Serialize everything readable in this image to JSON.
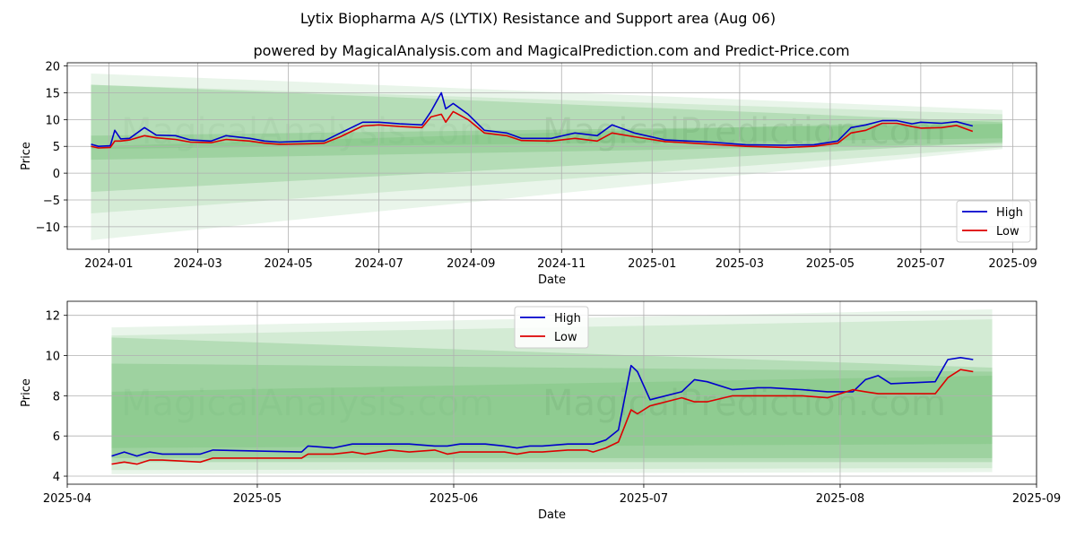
{
  "title": "Lytix Biopharma A/S (LYTIX) Resistance and Support area (Aug 06)",
  "subtitle": "powered by MagicalAnalysis.com and MagicalPrediction.com and Predict-Price.com",
  "watermark_left": "MagicalAnalysis.com",
  "watermark_right": "MagicalPrediction.com",
  "colors": {
    "high": "#0000cc",
    "low": "#dd0000",
    "band": "#4caf50",
    "grid": "#b0b0b0"
  },
  "chart_data": [
    {
      "type": "line",
      "xlabel": "Date",
      "ylabel": "Price",
      "xlim": [
        "2023-12-04",
        "2025-09-17"
      ],
      "ylim": [
        -14.2,
        20.6
      ],
      "x_ticks": [
        "2024-01",
        "2024-03",
        "2024-05",
        "2024-07",
        "2024-09",
        "2024-11",
        "2025-01",
        "2025-03",
        "2025-05",
        "2025-07",
        "2025-09"
      ],
      "y_ticks": [
        20,
        15,
        10,
        5,
        0,
        -5,
        -10
      ],
      "y_tick_labels": [
        "20",
        "15",
        "10",
        "5",
        "0",
        "−5",
        "−10"
      ],
      "legend": {
        "position": "lower-right",
        "entries": [
          "High",
          "Low"
        ]
      },
      "grid": true,
      "series": [
        {
          "name": "High",
          "points": [
            [
              "2023-12-20",
              5.4
            ],
            [
              "2023-12-25",
              5.0
            ],
            [
              "2024-01-02",
              5.1
            ],
            [
              "2024-01-05",
              8.0
            ],
            [
              "2024-01-09",
              6.4
            ],
            [
              "2024-01-15",
              6.5
            ],
            [
              "2024-01-25",
              8.5
            ],
            [
              "2024-02-02",
              7.1
            ],
            [
              "2024-02-15",
              7.0
            ],
            [
              "2024-02-25",
              6.2
            ],
            [
              "2024-03-10",
              6.0
            ],
            [
              "2024-03-20",
              7.0
            ],
            [
              "2024-04-05",
              6.5
            ],
            [
              "2024-04-15",
              6.0
            ],
            [
              "2024-04-25",
              5.8
            ],
            [
              "2024-05-15",
              6.0
            ],
            [
              "2024-05-25",
              6.0
            ],
            [
              "2024-06-05",
              7.5
            ],
            [
              "2024-06-20",
              9.5
            ],
            [
              "2024-07-01",
              9.5
            ],
            [
              "2024-07-15",
              9.2
            ],
            [
              "2024-07-30",
              9.0
            ],
            [
              "2024-08-05",
              11.5
            ],
            [
              "2024-08-12",
              15.0
            ],
            [
              "2024-08-15",
              12.0
            ],
            [
              "2024-08-20",
              13.0
            ],
            [
              "2024-08-30",
              11.0
            ],
            [
              "2024-09-10",
              8.0
            ],
            [
              "2024-09-25",
              7.5
            ],
            [
              "2024-10-05",
              6.5
            ],
            [
              "2024-10-25",
              6.5
            ],
            [
              "2024-11-10",
              7.5
            ],
            [
              "2024-11-25",
              7.0
            ],
            [
              "2024-12-05",
              9.0
            ],
            [
              "2024-12-20",
              7.5
            ],
            [
              "2025-01-10",
              6.2
            ],
            [
              "2025-02-10",
              5.8
            ],
            [
              "2025-03-05",
              5.3
            ],
            [
              "2025-04-01",
              5.2
            ],
            [
              "2025-04-20",
              5.3
            ],
            [
              "2025-05-06",
              6.0
            ],
            [
              "2025-05-15",
              8.5
            ],
            [
              "2025-05-25",
              9.0
            ],
            [
              "2025-06-05",
              9.8
            ],
            [
              "2025-06-15",
              9.8
            ],
            [
              "2025-06-25",
              9.2
            ],
            [
              "2025-07-01",
              9.5
            ],
            [
              "2025-07-15",
              9.3
            ],
            [
              "2025-07-25",
              9.6
            ],
            [
              "2025-08-05",
              8.8
            ]
          ]
        },
        {
          "name": "Low",
          "points": [
            [
              "2023-12-20",
              5.0
            ],
            [
              "2023-12-25",
              4.7
            ],
            [
              "2024-01-02",
              4.8
            ],
            [
              "2024-01-05",
              6.0
            ],
            [
              "2024-01-09",
              6.0
            ],
            [
              "2024-01-15",
              6.2
            ],
            [
              "2024-01-25",
              7.0
            ],
            [
              "2024-02-02",
              6.6
            ],
            [
              "2024-02-15",
              6.3
            ],
            [
              "2024-02-25",
              5.8
            ],
            [
              "2024-03-10",
              5.7
            ],
            [
              "2024-03-20",
              6.3
            ],
            [
              "2024-04-05",
              6.0
            ],
            [
              "2024-04-15",
              5.6
            ],
            [
              "2024-04-25",
              5.4
            ],
            [
              "2024-05-15",
              5.5
            ],
            [
              "2024-05-25",
              5.6
            ],
            [
              "2024-06-05",
              6.8
            ],
            [
              "2024-06-20",
              8.8
            ],
            [
              "2024-07-01",
              9.0
            ],
            [
              "2024-07-15",
              8.7
            ],
            [
              "2024-07-30",
              8.5
            ],
            [
              "2024-08-05",
              10.5
            ],
            [
              "2024-08-12",
              11.0
            ],
            [
              "2024-08-15",
              9.5
            ],
            [
              "2024-08-20",
              11.5
            ],
            [
              "2024-08-30",
              10.0
            ],
            [
              "2024-09-10",
              7.5
            ],
            [
              "2024-09-25",
              7.0
            ],
            [
              "2024-10-05",
              6.1
            ],
            [
              "2024-10-25",
              6.0
            ],
            [
              "2024-11-10",
              6.5
            ],
            [
              "2024-11-25",
              6.0
            ],
            [
              "2024-12-05",
              7.5
            ],
            [
              "2024-12-20",
              6.8
            ],
            [
              "2025-01-10",
              5.9
            ],
            [
              "2025-02-10",
              5.4
            ],
            [
              "2025-03-05",
              5.0
            ],
            [
              "2025-04-01",
              4.8
            ],
            [
              "2025-04-20",
              5.0
            ],
            [
              "2025-05-06",
              5.6
            ],
            [
              "2025-05-15",
              7.5
            ],
            [
              "2025-05-25",
              8.0
            ],
            [
              "2025-06-05",
              9.3
            ],
            [
              "2025-06-15",
              9.3
            ],
            [
              "2025-06-25",
              8.7
            ],
            [
              "2025-07-01",
              8.4
            ],
            [
              "2025-07-15",
              8.5
            ],
            [
              "2025-07-25",
              8.9
            ],
            [
              "2025-08-05",
              7.8
            ]
          ]
        }
      ],
      "bands": [
        {
          "start": "2023-12-20",
          "end": "2025-08-25",
          "upper": [
            18.6,
            11.8
          ],
          "lower": [
            -12.5,
            4.5
          ],
          "opacity": 0.12
        },
        {
          "start": "2023-12-20",
          "end": "2025-08-25",
          "upper": [
            16.5,
            11.0
          ],
          "lower": [
            -7.5,
            4.8
          ],
          "opacity": 0.14
        },
        {
          "start": "2023-12-20",
          "end": "2025-08-25",
          "upper": [
            16.5,
            9.5
          ],
          "lower": [
            2.5,
            5.5
          ],
          "opacity": 0.22
        },
        {
          "start": "2023-12-20",
          "end": "2025-08-25",
          "upper": [
            7.0,
            9.2
          ],
          "lower": [
            -3.5,
            5.8
          ],
          "opacity": 0.22
        },
        {
          "start": "2023-12-20",
          "end": "2025-08-25",
          "upper": [
            5.0,
            10.0
          ],
          "lower": [
            4.5,
            6.5
          ],
          "opacity": 0.18
        }
      ]
    },
    {
      "type": "line",
      "xlabel": "Date",
      "ylabel": "Price",
      "xlim": [
        "2025-04-01",
        "2025-09-01"
      ],
      "ylim": [
        3.6,
        12.7
      ],
      "x_ticks": [
        "2025-04",
        "2025-05",
        "2025-06",
        "2025-07",
        "2025-08",
        "2025-09"
      ],
      "y_ticks": [
        12,
        10,
        8,
        6,
        4
      ],
      "y_tick_labels": [
        "12",
        "10",
        "8",
        "6",
        "4"
      ],
      "legend": {
        "position": "upper-center",
        "entries": [
          "High",
          "Low"
        ]
      },
      "grid": true,
      "series": [
        {
          "name": "High",
          "points": [
            [
              "2025-04-08",
              5.0
            ],
            [
              "2025-04-10",
              5.2
            ],
            [
              "2025-04-12",
              5.0
            ],
            [
              "2025-04-14",
              5.2
            ],
            [
              "2025-04-16",
              5.1
            ],
            [
              "2025-04-22",
              5.1
            ],
            [
              "2025-04-24",
              5.3
            ],
            [
              "2025-05-08",
              5.2
            ],
            [
              "2025-05-09",
              5.5
            ],
            [
              "2025-05-13",
              5.4
            ],
            [
              "2025-05-16",
              5.6
            ],
            [
              "2025-05-18",
              5.6
            ],
            [
              "2025-05-22",
              5.6
            ],
            [
              "2025-05-25",
              5.6
            ],
            [
              "2025-05-29",
              5.5
            ],
            [
              "2025-05-31",
              5.5
            ],
            [
              "2025-06-02",
              5.6
            ],
            [
              "2025-06-06",
              5.6
            ],
            [
              "2025-06-09",
              5.5
            ],
            [
              "2025-06-11",
              5.4
            ],
            [
              "2025-06-13",
              5.5
            ],
            [
              "2025-06-15",
              5.5
            ],
            [
              "2025-06-19",
              5.6
            ],
            [
              "2025-06-22",
              5.6
            ],
            [
              "2025-06-23",
              5.6
            ],
            [
              "2025-06-25",
              5.8
            ],
            [
              "2025-06-27",
              6.3
            ],
            [
              "2025-06-29",
              9.5
            ],
            [
              "2025-06-30",
              9.2
            ],
            [
              "2025-07-02",
              7.8
            ],
            [
              "2025-07-07",
              8.2
            ],
            [
              "2025-07-09",
              8.8
            ],
            [
              "2025-07-11",
              8.7
            ],
            [
              "2025-07-15",
              8.3
            ],
            [
              "2025-07-19",
              8.4
            ],
            [
              "2025-07-21",
              8.4
            ],
            [
              "2025-07-26",
              8.3
            ],
            [
              "2025-07-30",
              8.2
            ],
            [
              "2025-08-03",
              8.2
            ],
            [
              "2025-08-05",
              8.8
            ],
            [
              "2025-08-07",
              9.0
            ],
            [
              "2025-08-09",
              8.6
            ],
            [
              "2025-08-16",
              8.7
            ],
            [
              "2025-08-18",
              9.8
            ],
            [
              "2025-08-20",
              9.9
            ],
            [
              "2025-08-22",
              9.8
            ]
          ]
        },
        {
          "name": "Low",
          "points": [
            [
              "2025-04-08",
              4.6
            ],
            [
              "2025-04-10",
              4.7
            ],
            [
              "2025-04-12",
              4.6
            ],
            [
              "2025-04-14",
              4.8
            ],
            [
              "2025-04-16",
              4.8
            ],
            [
              "2025-04-22",
              4.7
            ],
            [
              "2025-04-24",
              4.9
            ],
            [
              "2025-05-08",
              4.9
            ],
            [
              "2025-05-09",
              5.1
            ],
            [
              "2025-05-13",
              5.1
            ],
            [
              "2025-05-16",
              5.2
            ],
            [
              "2025-05-18",
              5.1
            ],
            [
              "2025-05-22",
              5.3
            ],
            [
              "2025-05-25",
              5.2
            ],
            [
              "2025-05-29",
              5.3
            ],
            [
              "2025-05-31",
              5.1
            ],
            [
              "2025-06-02",
              5.2
            ],
            [
              "2025-06-06",
              5.2
            ],
            [
              "2025-06-09",
              5.2
            ],
            [
              "2025-06-11",
              5.1
            ],
            [
              "2025-06-13",
              5.2
            ],
            [
              "2025-06-15",
              5.2
            ],
            [
              "2025-06-19",
              5.3
            ],
            [
              "2025-06-22",
              5.3
            ],
            [
              "2025-06-23",
              5.2
            ],
            [
              "2025-06-25",
              5.4
            ],
            [
              "2025-06-27",
              5.7
            ],
            [
              "2025-06-29",
              7.3
            ],
            [
              "2025-06-30",
              7.1
            ],
            [
              "2025-07-02",
              7.5
            ],
            [
              "2025-07-07",
              7.9
            ],
            [
              "2025-07-09",
              7.7
            ],
            [
              "2025-07-11",
              7.7
            ],
            [
              "2025-07-15",
              8.0
            ],
            [
              "2025-07-19",
              8.0
            ],
            [
              "2025-07-21",
              8.0
            ],
            [
              "2025-07-26",
              8.0
            ],
            [
              "2025-07-30",
              7.9
            ],
            [
              "2025-08-03",
              8.3
            ],
            [
              "2025-08-05",
              8.2
            ],
            [
              "2025-08-07",
              8.1
            ],
            [
              "2025-08-09",
              8.1
            ],
            [
              "2025-08-16",
              8.1
            ],
            [
              "2025-08-18",
              8.9
            ],
            [
              "2025-08-20",
              9.3
            ],
            [
              "2025-08-22",
              9.2
            ]
          ]
        }
      ],
      "bands": [
        {
          "start": "2025-04-08",
          "end": "2025-08-25",
          "upper": [
            11.4,
            12.3
          ],
          "lower": [
            4.1,
            4.2
          ],
          "opacity": 0.12
        },
        {
          "start": "2025-04-08",
          "end": "2025-08-25",
          "upper": [
            11.0,
            11.8
          ],
          "lower": [
            4.3,
            4.4
          ],
          "opacity": 0.14
        },
        {
          "start": "2025-04-08",
          "end": "2025-08-25",
          "upper": [
            10.9,
            9.4
          ],
          "lower": [
            4.7,
            4.7
          ],
          "opacity": 0.22
        },
        {
          "start": "2025-04-08",
          "end": "2025-08-25",
          "upper": [
            9.6,
            9.2
          ],
          "lower": [
            4.9,
            4.9
          ],
          "opacity": 0.22
        },
        {
          "start": "2025-04-08",
          "end": "2025-08-25",
          "upper": [
            8.2,
            9.0
          ],
          "lower": [
            5.4,
            5.6
          ],
          "opacity": 0.18
        }
      ]
    }
  ]
}
